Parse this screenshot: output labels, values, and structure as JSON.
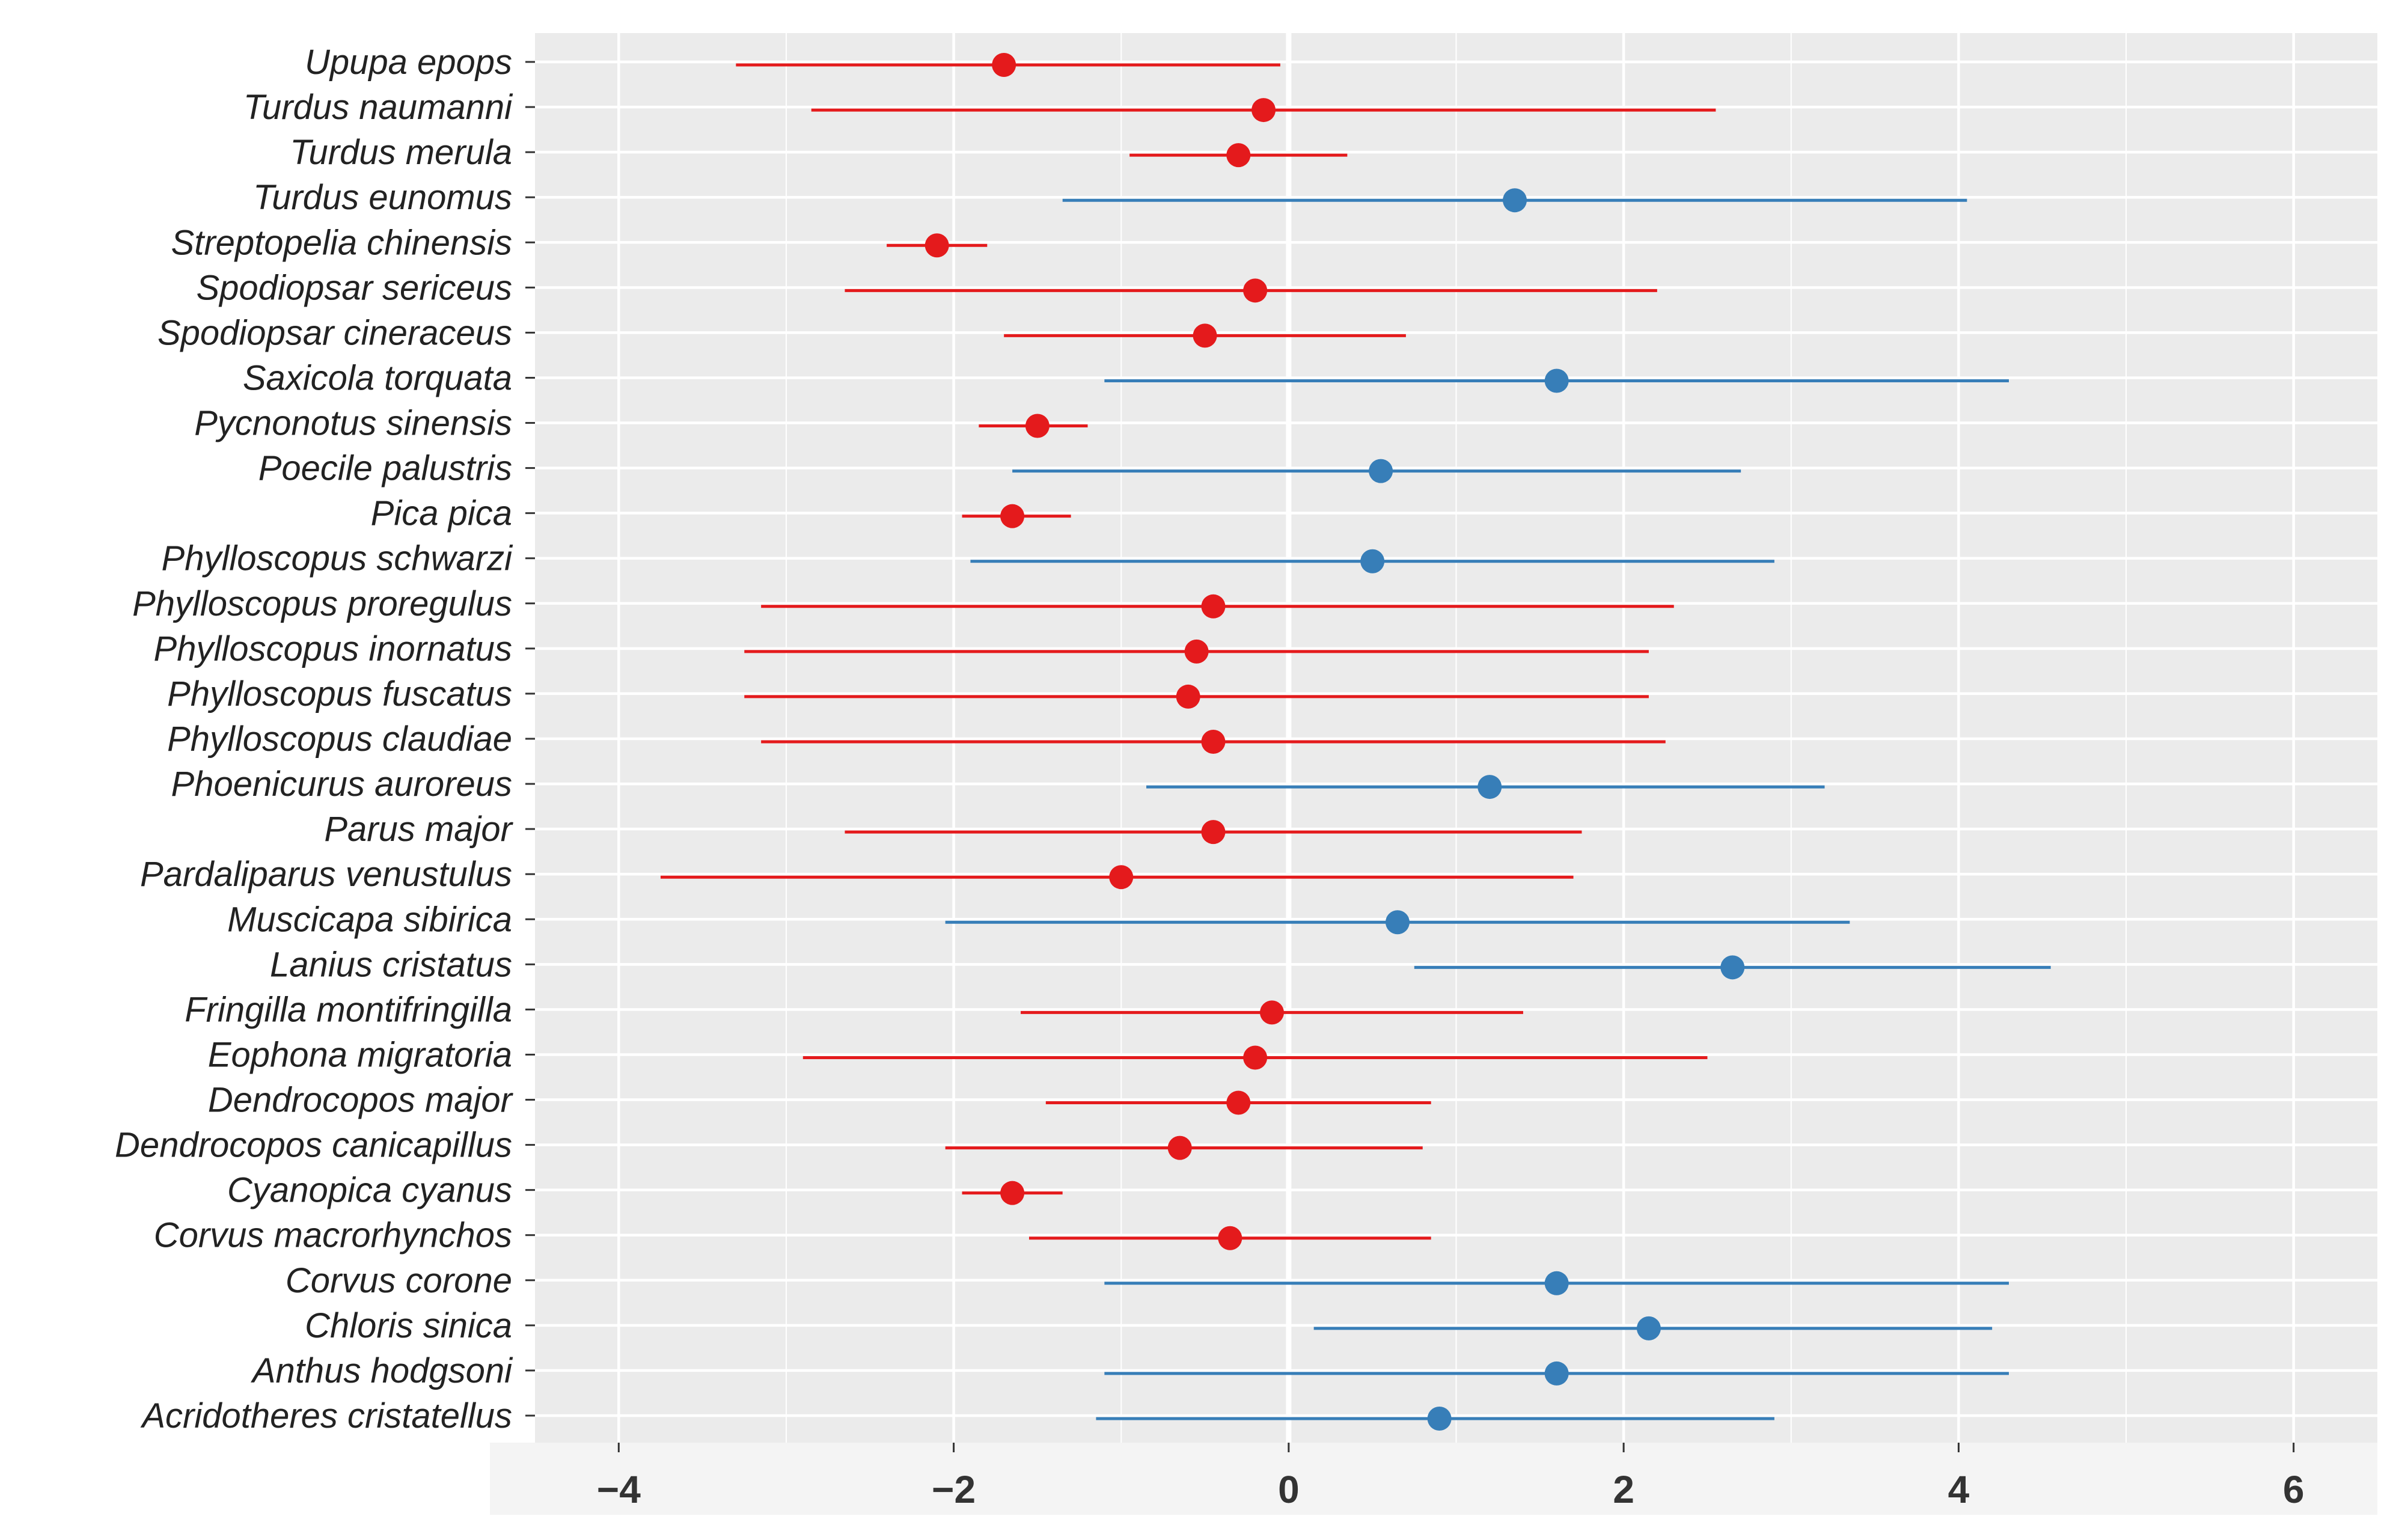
{
  "chart_data": {
    "type": "forest",
    "title": "",
    "xlabel": "",
    "ylabel": "",
    "xlim": [
      -4.5,
      6.5
    ],
    "x_ticks": [
      -4,
      -2,
      0,
      2,
      4,
      6
    ],
    "x_tick_labels": [
      "−4",
      "−2",
      "0",
      "2",
      "4",
      "6"
    ],
    "grid": true,
    "reference_line": 0,
    "colors": {
      "negative": "#e41a1c",
      "positive": "#377eb8",
      "panel": "#ebebeb",
      "grid": "#ffffff"
    },
    "species": [
      {
        "name": "Upupa epops",
        "estimate": -1.7,
        "lower": -3.3,
        "upper": -0.05,
        "group": "negative"
      },
      {
        "name": "Turdus naumanni",
        "estimate": -0.15,
        "lower": -2.85,
        "upper": 2.55,
        "group": "negative"
      },
      {
        "name": "Turdus merula",
        "estimate": -0.3,
        "lower": -0.95,
        "upper": 0.35,
        "group": "negative"
      },
      {
        "name": "Turdus eunomus",
        "estimate": 1.35,
        "lower": -1.35,
        "upper": 4.05,
        "group": "positive"
      },
      {
        "name": "Streptopelia chinensis",
        "estimate": -2.1,
        "lower": -2.4,
        "upper": -1.8,
        "group": "negative"
      },
      {
        "name": "Spodiopsar sericeus",
        "estimate": -0.2,
        "lower": -2.65,
        "upper": 2.2,
        "group": "negative"
      },
      {
        "name": "Spodiopsar cineraceus",
        "estimate": -0.5,
        "lower": -1.7,
        "upper": 0.7,
        "group": "negative"
      },
      {
        "name": "Saxicola torquata",
        "estimate": 1.6,
        "lower": -1.1,
        "upper": 4.3,
        "group": "positive"
      },
      {
        "name": "Pycnonotus sinensis",
        "estimate": -1.5,
        "lower": -1.85,
        "upper": -1.2,
        "group": "negative"
      },
      {
        "name": "Poecile palustris",
        "estimate": 0.55,
        "lower": -1.65,
        "upper": 2.7,
        "group": "positive"
      },
      {
        "name": "Pica pica",
        "estimate": -1.65,
        "lower": -1.95,
        "upper": -1.3,
        "group": "negative"
      },
      {
        "name": "Phylloscopus schwarzi",
        "estimate": 0.5,
        "lower": -1.9,
        "upper": 2.9,
        "group": "positive"
      },
      {
        "name": "Phylloscopus proregulus",
        "estimate": -0.45,
        "lower": -3.15,
        "upper": 2.3,
        "group": "negative"
      },
      {
        "name": "Phylloscopus inornatus",
        "estimate": -0.55,
        "lower": -3.25,
        "upper": 2.15,
        "group": "negative"
      },
      {
        "name": "Phylloscopus fuscatus",
        "estimate": -0.6,
        "lower": -3.25,
        "upper": 2.15,
        "group": "negative"
      },
      {
        "name": "Phylloscopus claudiae",
        "estimate": -0.45,
        "lower": -3.15,
        "upper": 2.25,
        "group": "negative"
      },
      {
        "name": "Phoenicurus auroreus",
        "estimate": 1.2,
        "lower": -0.85,
        "upper": 3.2,
        "group": "positive"
      },
      {
        "name": "Parus major",
        "estimate": -0.45,
        "lower": -2.65,
        "upper": 1.75,
        "group": "negative"
      },
      {
        "name": "Pardaliparus venustulus",
        "estimate": -1.0,
        "lower": -3.75,
        "upper": 1.7,
        "group": "negative"
      },
      {
        "name": "Muscicapa sibirica",
        "estimate": 0.65,
        "lower": -2.05,
        "upper": 3.35,
        "group": "positive"
      },
      {
        "name": "Lanius cristatus",
        "estimate": 2.65,
        "lower": 0.75,
        "upper": 4.55,
        "group": "positive"
      },
      {
        "name": "Fringilla montifringilla",
        "estimate": -0.1,
        "lower": -1.6,
        "upper": 1.4,
        "group": "negative"
      },
      {
        "name": "Eophona migratoria",
        "estimate": -0.2,
        "lower": -2.9,
        "upper": 2.5,
        "group": "negative"
      },
      {
        "name": "Dendrocopos major",
        "estimate": -0.3,
        "lower": -1.45,
        "upper": 0.85,
        "group": "negative"
      },
      {
        "name": "Dendrocopos canicapillus",
        "estimate": -0.65,
        "lower": -2.05,
        "upper": 0.8,
        "group": "negative"
      },
      {
        "name": "Cyanopica cyanus",
        "estimate": -1.65,
        "lower": -1.95,
        "upper": -1.35,
        "group": "negative"
      },
      {
        "name": "Corvus macrorhynchos",
        "estimate": -0.35,
        "lower": -1.55,
        "upper": 0.85,
        "group": "negative"
      },
      {
        "name": "Corvus corone",
        "estimate": 1.6,
        "lower": -1.1,
        "upper": 4.3,
        "group": "positive"
      },
      {
        "name": "Chloris sinica",
        "estimate": 2.15,
        "lower": 0.15,
        "upper": 4.2,
        "group": "positive"
      },
      {
        "name": "Anthus hodgsoni",
        "estimate": 1.6,
        "lower": -1.1,
        "upper": 4.3,
        "group": "positive"
      },
      {
        "name": "Acridotheres cristatellus",
        "estimate": 0.9,
        "lower": -1.15,
        "upper": 2.9,
        "group": "positive"
      }
    ]
  }
}
